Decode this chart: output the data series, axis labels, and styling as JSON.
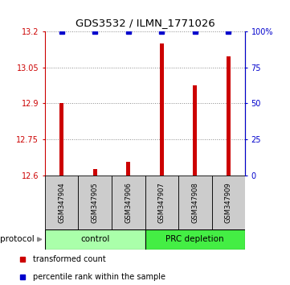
{
  "title": "GDS3532 / ILMN_1771026",
  "samples": [
    "GSM347904",
    "GSM347905",
    "GSM347906",
    "GSM347907",
    "GSM347908",
    "GSM347909"
  ],
  "red_values": [
    12.9,
    12.625,
    12.655,
    13.15,
    12.975,
    13.095
  ],
  "blue_values": [
    100,
    100,
    100,
    100,
    100,
    100
  ],
  "ylim_left": [
    12.6,
    13.2
  ],
  "ylim_right": [
    0,
    100
  ],
  "yticks_left": [
    12.6,
    12.75,
    12.9,
    13.05,
    13.2
  ],
  "yticks_right": [
    0,
    25,
    50,
    75,
    100
  ],
  "ytick_labels_right": [
    "0",
    "25",
    "50",
    "75",
    "100%"
  ],
  "groups": [
    {
      "label": "control",
      "n": 3,
      "color": "#aaffaa"
    },
    {
      "label": "PRC depletion",
      "n": 3,
      "color": "#44ee44"
    }
  ],
  "bar_color": "#cc0000",
  "blue_marker_color": "#0000cc",
  "background_color": "#ffffff",
  "dotted_line_color": "#888888",
  "sample_box_color": "#cccccc",
  "legend_red_label": "transformed count",
  "legend_blue_label": "percentile rank within the sample",
  "bar_width": 0.12
}
